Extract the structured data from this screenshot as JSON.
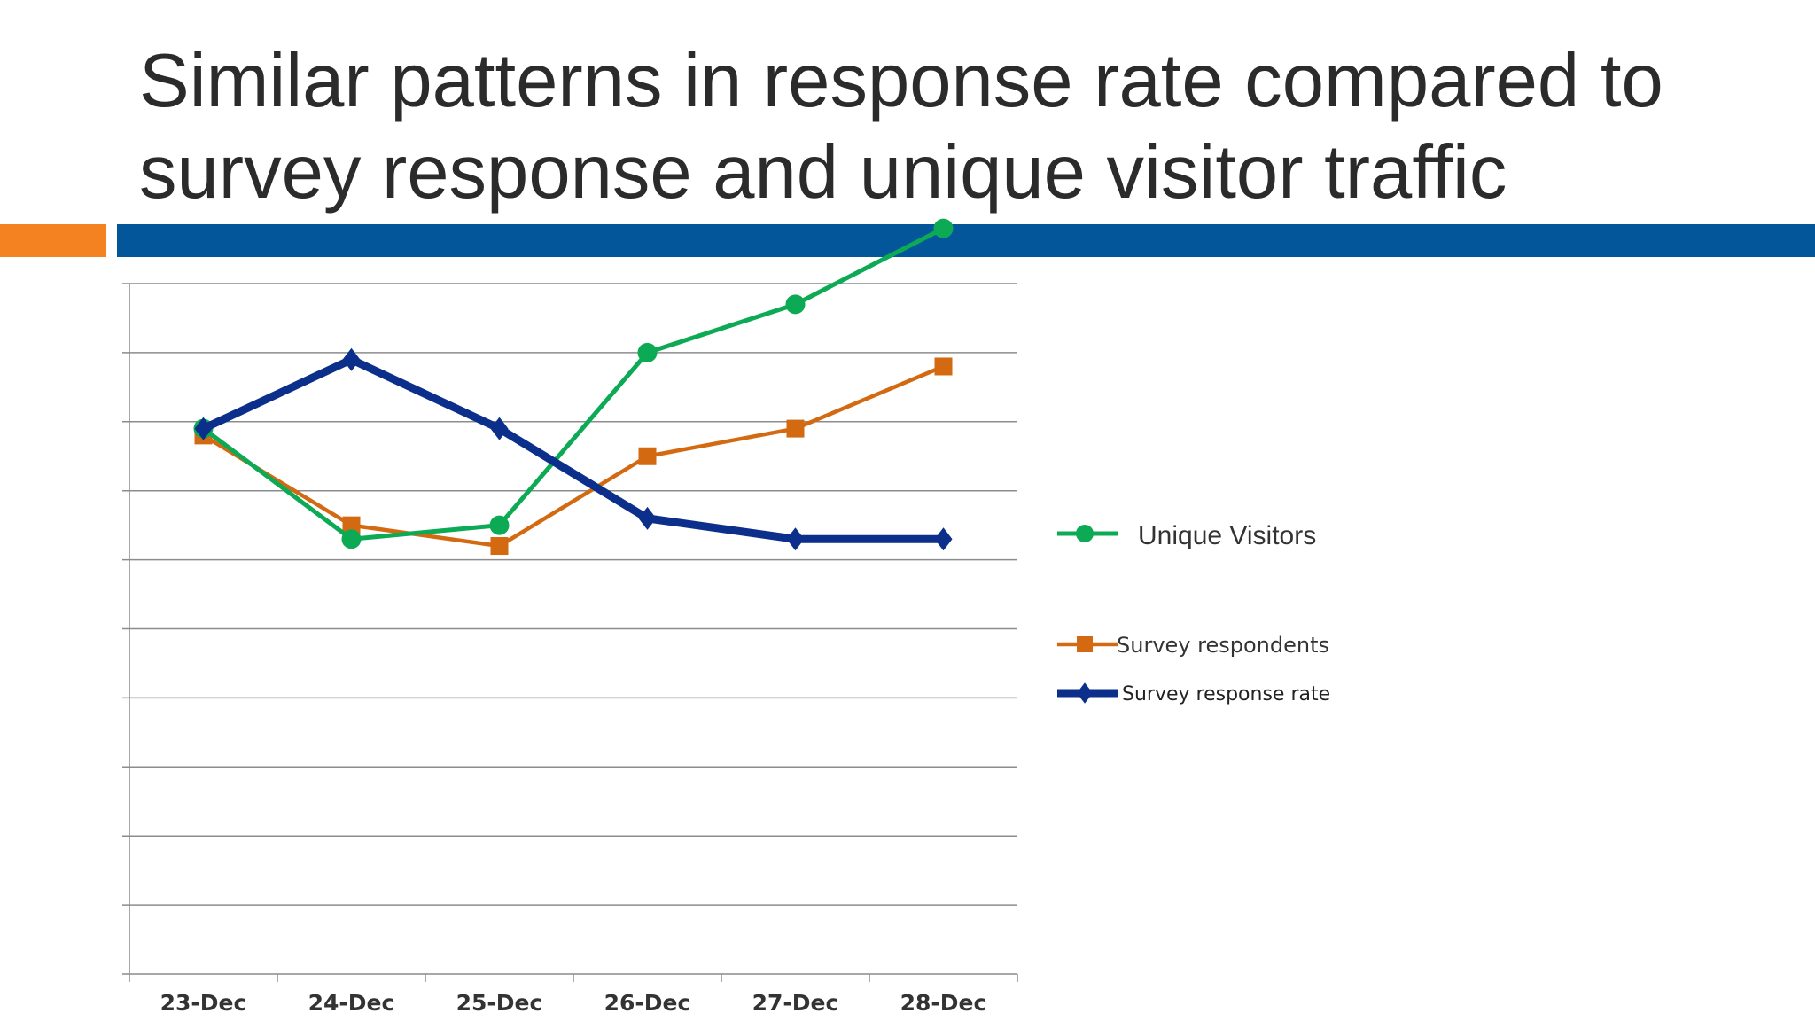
{
  "slide": {
    "title": "Similar patterns in response rate compared to survey response and unique visitor traffic",
    "accent_colors": {
      "orange": "#F58220",
      "blue": "#04569A"
    }
  },
  "chart_data": {
    "type": "line",
    "title": "",
    "xlabel": "",
    "ylabel": "",
    "categories": [
      "23-Dec",
      "24-Dec",
      "25-Dec",
      "26-Dec",
      "27-Dec",
      "28-Dec"
    ],
    "ylim": [
      0,
      10
    ],
    "grid": true,
    "legend_position": "right",
    "series": [
      {
        "name": "Unique Visitors",
        "color": "#0DAA55",
        "marker": "circle",
        "values": [
          7.9,
          6.3,
          6.5,
          9.0,
          9.7,
          10.8
        ]
      },
      {
        "name": "Survey respondents",
        "color": "#D36A12",
        "marker": "square",
        "values": [
          7.8,
          6.5,
          6.2,
          7.5,
          7.9,
          8.8
        ]
      },
      {
        "name": "Survey response rate",
        "color": "#0B2F8A",
        "marker": "diamond",
        "values": [
          7.9,
          8.9,
          7.9,
          6.6,
          6.3,
          6.3
        ]
      }
    ]
  }
}
